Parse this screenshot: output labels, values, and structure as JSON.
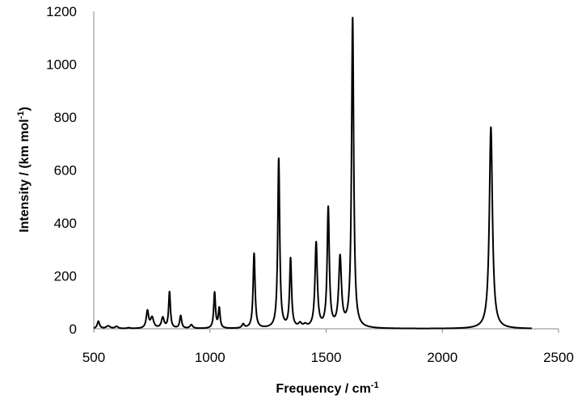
{
  "chart_data": {
    "type": "line",
    "title": "",
    "xlabel": "Frequency / cm",
    "xlabel_sup": "-1",
    "ylabel": "Intensity / (km mol",
    "ylabel_sup": "-1",
    "ylabel_end": ")",
    "xlim": [
      500,
      2500
    ],
    "ylim": [
      0,
      1200
    ],
    "x_ticks": [
      500,
      1000,
      1500,
      2000,
      2500
    ],
    "y_ticks": [
      0,
      200,
      400,
      600,
      800,
      1000,
      1200
    ],
    "grid": false,
    "legend": "none",
    "series": [
      {
        "color": "#000000",
        "line_start": 500,
        "line_end": 2385,
        "peaks": [
          {
            "x": 520,
            "y": 28,
            "w": 6
          },
          {
            "x": 562,
            "y": 10,
            "w": 10
          },
          {
            "x": 598,
            "y": 8,
            "w": 8
          },
          {
            "x": 650,
            "y": 3,
            "w": 8
          },
          {
            "x": 731,
            "y": 65,
            "w": 6
          },
          {
            "x": 751,
            "y": 40,
            "w": 8
          },
          {
            "x": 797,
            "y": 40,
            "w": 7
          },
          {
            "x": 826,
            "y": 137,
            "w": 4.5
          },
          {
            "x": 874,
            "y": 48,
            "w": 5
          },
          {
            "x": 920,
            "y": 14,
            "w": 7
          },
          {
            "x": 1020,
            "y": 135,
            "w": 4.5
          },
          {
            "x": 1040,
            "y": 75,
            "w": 4.5
          },
          {
            "x": 1143,
            "y": 15,
            "w": 6
          },
          {
            "x": 1190,
            "y": 283,
            "w": 5
          },
          {
            "x": 1296,
            "y": 640,
            "w": 5
          },
          {
            "x": 1347,
            "y": 260,
            "w": 5
          },
          {
            "x": 1388,
            "y": 15,
            "w": 8
          },
          {
            "x": 1410,
            "y": 10,
            "w": 8
          },
          {
            "x": 1457,
            "y": 320,
            "w": 6
          },
          {
            "x": 1509,
            "y": 450,
            "w": 5.5
          },
          {
            "x": 1560,
            "y": 262,
            "w": 7
          },
          {
            "x": 1614,
            "y": 1170,
            "w": 5.5
          },
          {
            "x": 2209,
            "y": 762,
            "w": 8
          }
        ]
      }
    ]
  }
}
